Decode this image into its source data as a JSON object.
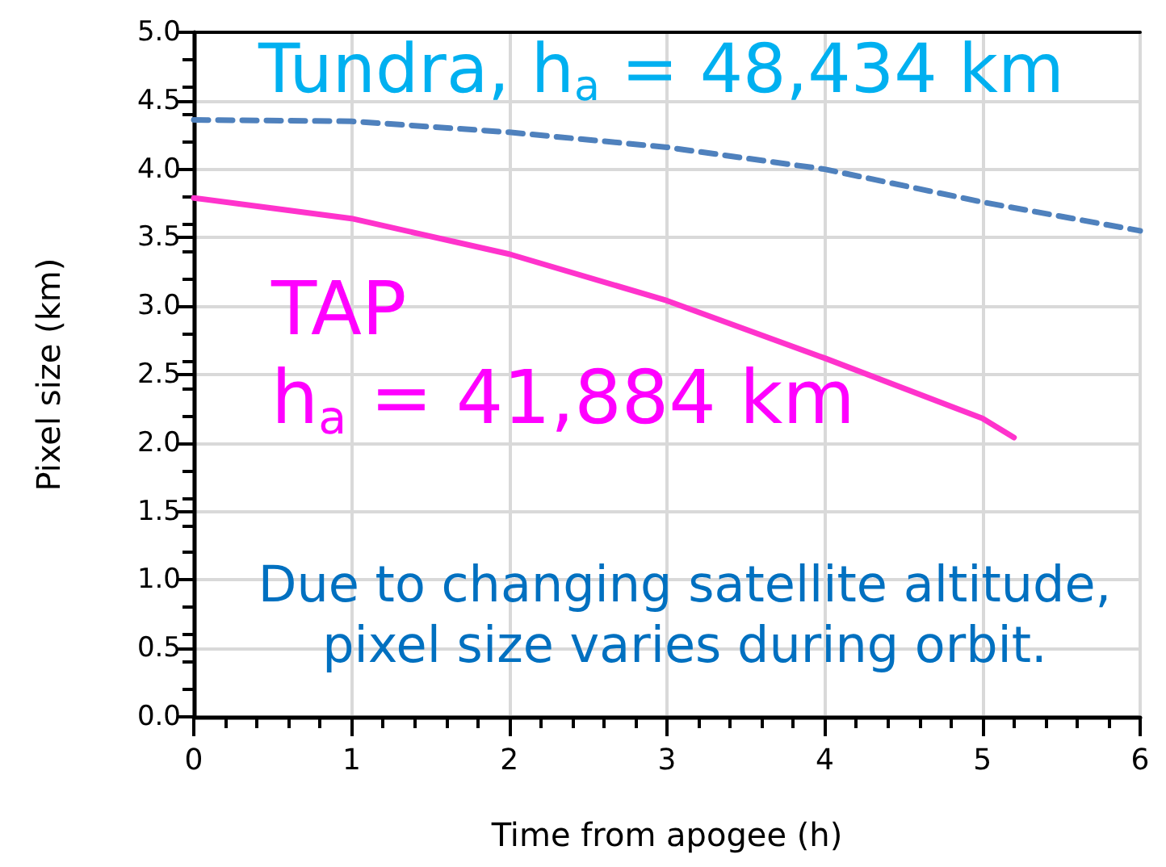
{
  "chart_data": {
    "type": "line",
    "xlabel": "Time from apogee (h)",
    "ylabel": "Pixel size (km)",
    "x": [
      0,
      1,
      2,
      3,
      4,
      5,
      6
    ],
    "series": [
      {
        "name": "Tundra, h$_{a}$ = 48,434 km",
        "color": "#4f81bd",
        "line_style": "dashed",
        "values": [
          4.36,
          4.35,
          4.27,
          4.16,
          4.0,
          3.76,
          3.55
        ]
      },
      {
        "name": "TAP\nh$_{a}$ = 41,884 km",
        "color": "#ff33cc",
        "line_style": "solid",
        "x": [
          0,
          1,
          2,
          3,
          4,
          5,
          5.2
        ],
        "values": [
          3.79,
          3.64,
          3.38,
          3.04,
          2.62,
          2.18,
          2.04
        ]
      }
    ],
    "annotations": [
      "Due to changing satellite altitude,\npixel size varies during orbit."
    ],
    "xlim": [
      0,
      6
    ],
    "xticks": [
      0,
      1,
      2,
      3,
      4,
      5,
      6
    ],
    "ylim": [
      0,
      5
    ],
    "yticks": [
      {
        "value": 0,
        "label": "0.0"
      },
      {
        "value": 0.5,
        "label": "0.5"
      },
      {
        "value": 1,
        "label": "1.0"
      },
      {
        "value": 1.5,
        "label": "1.5"
      },
      {
        "value": 2,
        "label": "2.0"
      },
      {
        "value": 2.5,
        "label": "2.5"
      },
      {
        "value": 3,
        "label": "3.0"
      },
      {
        "value": 3.5,
        "label": "3.5"
      },
      {
        "value": 4,
        "label": "4.0"
      },
      {
        "value": 4.5,
        "label": "4.5"
      },
      {
        "value": 5,
        "label": "5.0"
      }
    ],
    "grid": true,
    "legend": false,
    "marker": "none"
  }
}
